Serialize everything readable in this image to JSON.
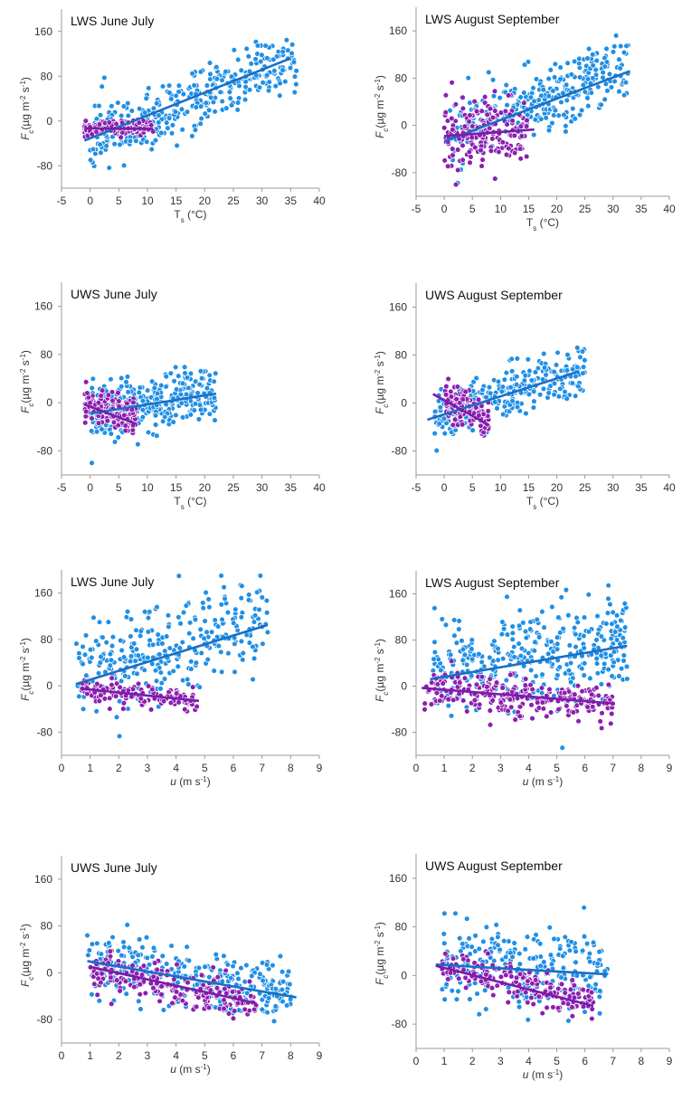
{
  "colors": {
    "blue": "#1f8fe6",
    "purple": "#8c1fb0",
    "blue_line": "#1a6fc4",
    "purple_line": "#7a1ca8",
    "axis": "#9a9a9a"
  },
  "y_label": {
    "symbol": "F",
    "subscript": "c",
    "units": "(µg m",
    "exp1": "-2",
    "mid": " s",
    "exp2": "-1",
    "close": ")"
  },
  "chart_data": [
    {
      "panel": "a",
      "type": "scatter",
      "title": "LWS June July",
      "xvar": "Ts",
      "xlabel": {
        "main": "T",
        "sub": "s",
        "rest": " (°C)"
      },
      "xlim": [
        -5,
        40
      ],
      "ylim": [
        -120,
        200
      ],
      "xticks": [
        "-5",
        "0",
        "5",
        "10",
        "15",
        "20",
        "25",
        "30",
        "35",
        "40"
      ],
      "yticks": [
        "160",
        "80",
        "0",
        "-80"
      ],
      "series": [
        {
          "name": "blue",
          "color": "#1f8fe6",
          "cloud": {
            "x_range": [
              0,
              36
            ],
            "n": 360,
            "slope": 3.9,
            "intercept": -32,
            "spread": 28,
            "seed": 11
          },
          "fit": {
            "x": [
              -1,
              35
            ],
            "y": [
              -35,
              112
            ]
          }
        },
        {
          "name": "purple",
          "color": "#8c1fb0",
          "cloud": {
            "x_range": [
              -1,
              11
            ],
            "n": 150,
            "slope": 0,
            "intercept": -13,
            "spread": 7,
            "seed": 12
          },
          "fit": {
            "x": [
              -1,
              11
            ],
            "y": [
              -13,
              -14
            ]
          }
        }
      ]
    },
    {
      "panel": "b",
      "type": "scatter",
      "title": "LWS August September",
      "xvar": "Ts",
      "xlabel": {
        "main": "T",
        "sub": "s",
        "rest": " (°C)"
      },
      "xlim": [
        -5,
        40
      ],
      "ylim": [
        -120,
        200
      ],
      "xticks": [
        "-5",
        "0",
        "5",
        "10",
        "15",
        "20",
        "25",
        "30",
        "35",
        "40"
      ],
      "yticks": [
        "160",
        "80",
        "0",
        "-80"
      ],
      "series": [
        {
          "name": "blue",
          "color": "#1f8fe6",
          "cloud": {
            "x_range": [
              1,
              33
            ],
            "n": 330,
            "slope": 3.7,
            "intercept": -20,
            "spread": 28,
            "seed": 21
          },
          "fit": {
            "x": [
              0,
              33
            ],
            "y": [
              -27,
              92
            ]
          }
        },
        {
          "name": "purple",
          "color": "#8c1fb0",
          "cloud": {
            "x_range": [
              0,
              15
            ],
            "n": 190,
            "slope": 0.5,
            "intercept": -18,
            "spread": 28,
            "seed": 22
          },
          "fit": {
            "x": [
              0,
              16
            ],
            "y": [
              -18,
              -7
            ]
          }
        }
      ]
    },
    {
      "panel": "c",
      "type": "scatter",
      "title": "UWS June July",
      "xvar": "Ts",
      "xlabel": {
        "main": "T",
        "sub": "s",
        "rest": " (°C)"
      },
      "xlim": [
        -5,
        40
      ],
      "ylim": [
        -120,
        200
      ],
      "xticks": [
        "-5",
        "0",
        "5",
        "10",
        "15",
        "20",
        "25",
        "30",
        "35",
        "40"
      ],
      "yticks": [
        "160",
        "80",
        "0",
        "-80"
      ],
      "series": [
        {
          "name": "blue",
          "color": "#1f8fe6",
          "cloud": {
            "x_range": [
              0,
              22
            ],
            "n": 330,
            "slope": 1.5,
            "intercept": -18,
            "spread": 24,
            "seed": 31
          },
          "fit": {
            "x": [
              0,
              22
            ],
            "y": [
              -18,
              15
            ]
          }
        },
        {
          "name": "purple",
          "color": "#8c1fb0",
          "cloud": {
            "x_range": [
              -1,
              8
            ],
            "n": 150,
            "slope": -2.3,
            "intercept": -5,
            "spread": 16,
            "seed": 32
          },
          "fit": {
            "x": [
              -1,
              8
            ],
            "y": [
              -3,
              -35
            ]
          }
        }
      ]
    },
    {
      "panel": "d",
      "type": "scatter",
      "title": "UWS August September",
      "xvar": "Ts",
      "xlabel": {
        "main": "T",
        "sub": "s",
        "rest": " (°C)"
      },
      "xlim": [
        -5,
        40
      ],
      "ylim": [
        -120,
        200
      ],
      "xticks": [
        "-5",
        "0",
        "5",
        "10",
        "15",
        "20",
        "25",
        "30",
        "35",
        "40"
      ],
      "yticks": [
        "160",
        "80",
        "0",
        "-80"
      ],
      "series": [
        {
          "name": "blue",
          "color": "#1f8fe6",
          "cloud": {
            "x_range": [
              -2,
              25
            ],
            "n": 280,
            "slope": 3.0,
            "intercept": -20,
            "spread": 22,
            "seed": 41
          },
          "fit": {
            "x": [
              -3,
              24
            ],
            "y": [
              -28,
              53
            ]
          }
        },
        {
          "name": "purple",
          "color": "#8c1fb0",
          "cloud": {
            "x_range": [
              0,
              8
            ],
            "n": 130,
            "slope": -5.5,
            "intercept": 12,
            "spread": 17,
            "seed": 42
          },
          "fit": {
            "x": [
              -2,
              8
            ],
            "y": [
              15,
              -37
            ]
          }
        }
      ]
    },
    {
      "panel": "e",
      "type": "scatter",
      "title": "LWS June July",
      "xvar": "u",
      "xlabel": {
        "main": "u",
        "sub": "",
        "rest": " (m s",
        "exp": "-1",
        "close": ")"
      },
      "xlim": [
        0,
        9
      ],
      "ylim": [
        -120,
        200
      ],
      "xticks": [
        "0",
        "1",
        "2",
        "3",
        "4",
        "5",
        "6",
        "7",
        "8",
        "9"
      ],
      "yticks": [
        "160",
        "80",
        "0",
        "-80"
      ],
      "series": [
        {
          "name": "blue",
          "color": "#1f8fe6",
          "cloud": {
            "x_range": [
              0.5,
              7.2
            ],
            "n": 300,
            "slope": 15,
            "intercept": 10,
            "spread": 40,
            "seed": 51
          },
          "fit": {
            "x": [
              0.5,
              7.2
            ],
            "y": [
              3,
              105
            ]
          }
        },
        {
          "name": "purple",
          "color": "#8c1fb0",
          "cloud": {
            "x_range": [
              0.7,
              4.8
            ],
            "n": 140,
            "slope": -5.2,
            "intercept": -2,
            "spread": 9,
            "seed": 52
          },
          "fit": {
            "x": [
              0.7,
              4.8
            ],
            "y": [
              -5,
              -26
            ]
          }
        }
      ]
    },
    {
      "panel": "f",
      "type": "scatter",
      "title": "LWS August September",
      "xvar": "u",
      "xlabel": {
        "main": "u",
        "sub": "",
        "rest": " (m s",
        "exp": "-1",
        "close": ")"
      },
      "xlim": [
        0,
        9
      ],
      "ylim": [
        -120,
        200
      ],
      "xticks": [
        "0",
        "1",
        "2",
        "3",
        "4",
        "5",
        "6",
        "7",
        "8",
        "9"
      ],
      "yticks": [
        "160",
        "80",
        "0",
        "-80"
      ],
      "series": [
        {
          "name": "blue",
          "color": "#1f8fe6",
          "cloud": {
            "x_range": [
              0.6,
              7.5
            ],
            "n": 380,
            "slope": 8,
            "intercept": 20,
            "spread": 42,
            "seed": 61
          },
          "fit": {
            "x": [
              0.5,
              7.5
            ],
            "y": [
              12,
              70
            ]
          }
        },
        {
          "name": "purple",
          "color": "#8c1fb0",
          "cloud": {
            "x_range": [
              0.3,
              7
            ],
            "n": 240,
            "slope": -4.2,
            "intercept": -3,
            "spread": 17,
            "seed": 62
          },
          "fit": {
            "x": [
              0.2,
              7
            ],
            "y": [
              -3,
              -30
            ]
          }
        }
      ]
    },
    {
      "panel": "g",
      "type": "scatter",
      "title": "UWS June July",
      "xvar": "u",
      "xlabel": {
        "main": "u",
        "sub": "",
        "rest": " (m s",
        "exp": "-1",
        "close": ")"
      },
      "xlim": [
        0,
        9
      ],
      "ylim": [
        -120,
        200
      ],
      "xticks": [
        "0",
        "1",
        "2",
        "3",
        "4",
        "5",
        "6",
        "7",
        "8",
        "9"
      ],
      "yticks": [
        "160",
        "80",
        "0",
        "-80"
      ],
      "series": [
        {
          "name": "blue",
          "color": "#1f8fe6",
          "cloud": {
            "x_range": [
              0.9,
              8.1
            ],
            "n": 330,
            "slope": -7.7,
            "intercept": 27,
            "spread": 25,
            "seed": 71
          },
          "fit": {
            "x": [
              0.9,
              8.2
            ],
            "y": [
              20,
              -42
            ]
          }
        },
        {
          "name": "purple",
          "color": "#8c1fb0",
          "cloud": {
            "x_range": [
              1,
              6.8
            ],
            "n": 210,
            "slope": -10.6,
            "intercept": 18,
            "spread": 16,
            "seed": 72
          },
          "fit": {
            "x": [
              1,
              6.8
            ],
            "y": [
              10,
              -52
            ]
          }
        }
      ]
    },
    {
      "panel": "h",
      "type": "scatter",
      "title": "UWS August September",
      "xvar": "u",
      "xlabel": {
        "main": "u",
        "sub": "",
        "rest": " (m s",
        "exp": "-1",
        "close": ")"
      },
      "xlim": [
        0,
        9
      ],
      "ylim": [
        -120,
        200
      ],
      "xticks": [
        "0",
        "1",
        "2",
        "3",
        "4",
        "5",
        "6",
        "7",
        "8",
        "9"
      ],
      "yticks": [
        "160",
        "80",
        "0",
        "-80"
      ],
      "series": [
        {
          "name": "blue",
          "color": "#1f8fe6",
          "cloud": {
            "x_range": [
              0.9,
              6.8
            ],
            "n": 270,
            "slope": -2.8,
            "intercept": 22,
            "spread": 35,
            "seed": 81
          },
          "fit": {
            "x": [
              0.7,
              6.8
            ],
            "y": [
              18,
              2
            ]
          }
        },
        {
          "name": "purple",
          "color": "#8c1fb0",
          "cloud": {
            "x_range": [
              0.9,
              6.3
            ],
            "n": 190,
            "slope": -11.8,
            "intercept": 28,
            "spread": 15,
            "seed": 82
          },
          "fit": {
            "x": [
              0.7,
              6.3
            ],
            "y": [
              16,
              -50
            ]
          }
        }
      ]
    }
  ]
}
